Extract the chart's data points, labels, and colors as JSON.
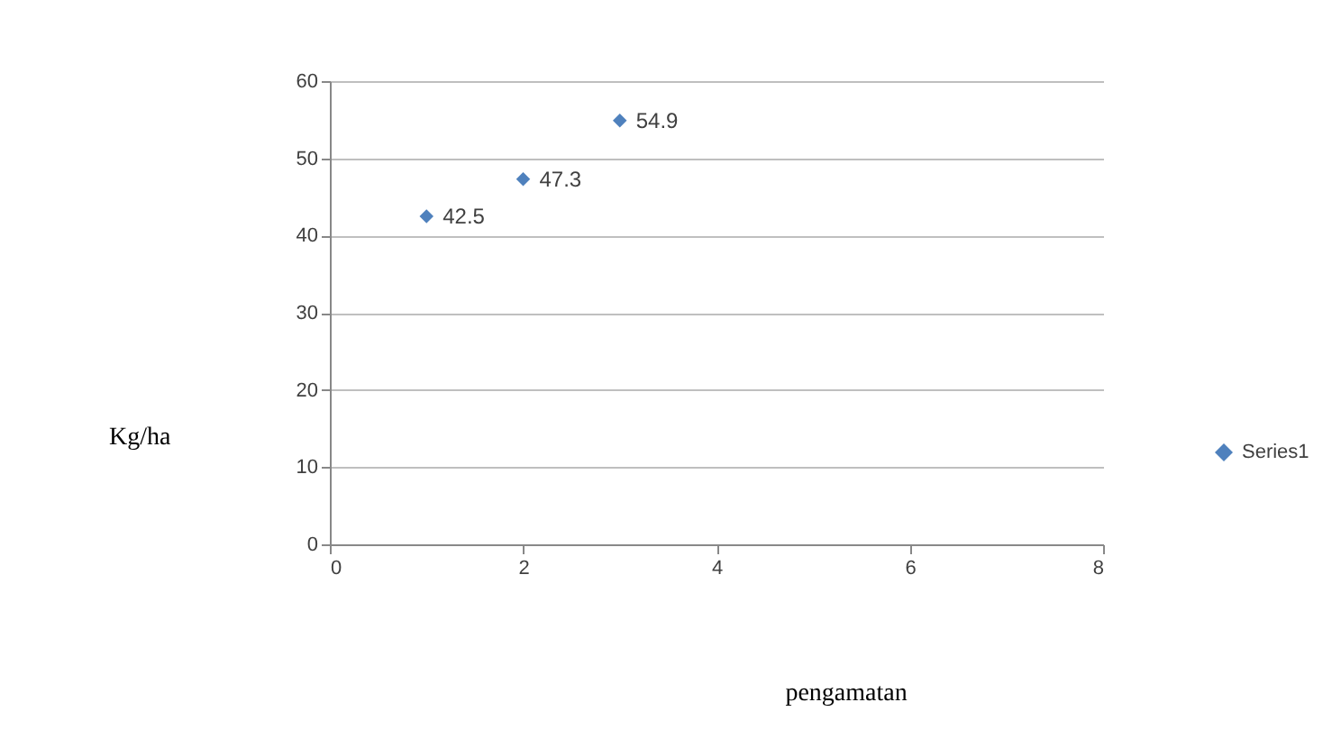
{
  "chart_data": {
    "type": "scatter",
    "xlabel": "pengamatan",
    "ylabel": "Kg/ha",
    "x": [
      1,
      2,
      3
    ],
    "series": [
      {
        "name": "Series1",
        "color": "#4f81bd",
        "values": [
          42.5,
          47.3,
          54.9
        ]
      }
    ],
    "xlim": [
      0,
      8
    ],
    "xticks": [
      0,
      2,
      4,
      6,
      8
    ],
    "ylim": [
      0,
      60
    ],
    "yticks": [
      0,
      10,
      20,
      30,
      40,
      50,
      60
    ],
    "grid": "y",
    "legend": "right",
    "marker": "diamond",
    "data_labels": true
  }
}
